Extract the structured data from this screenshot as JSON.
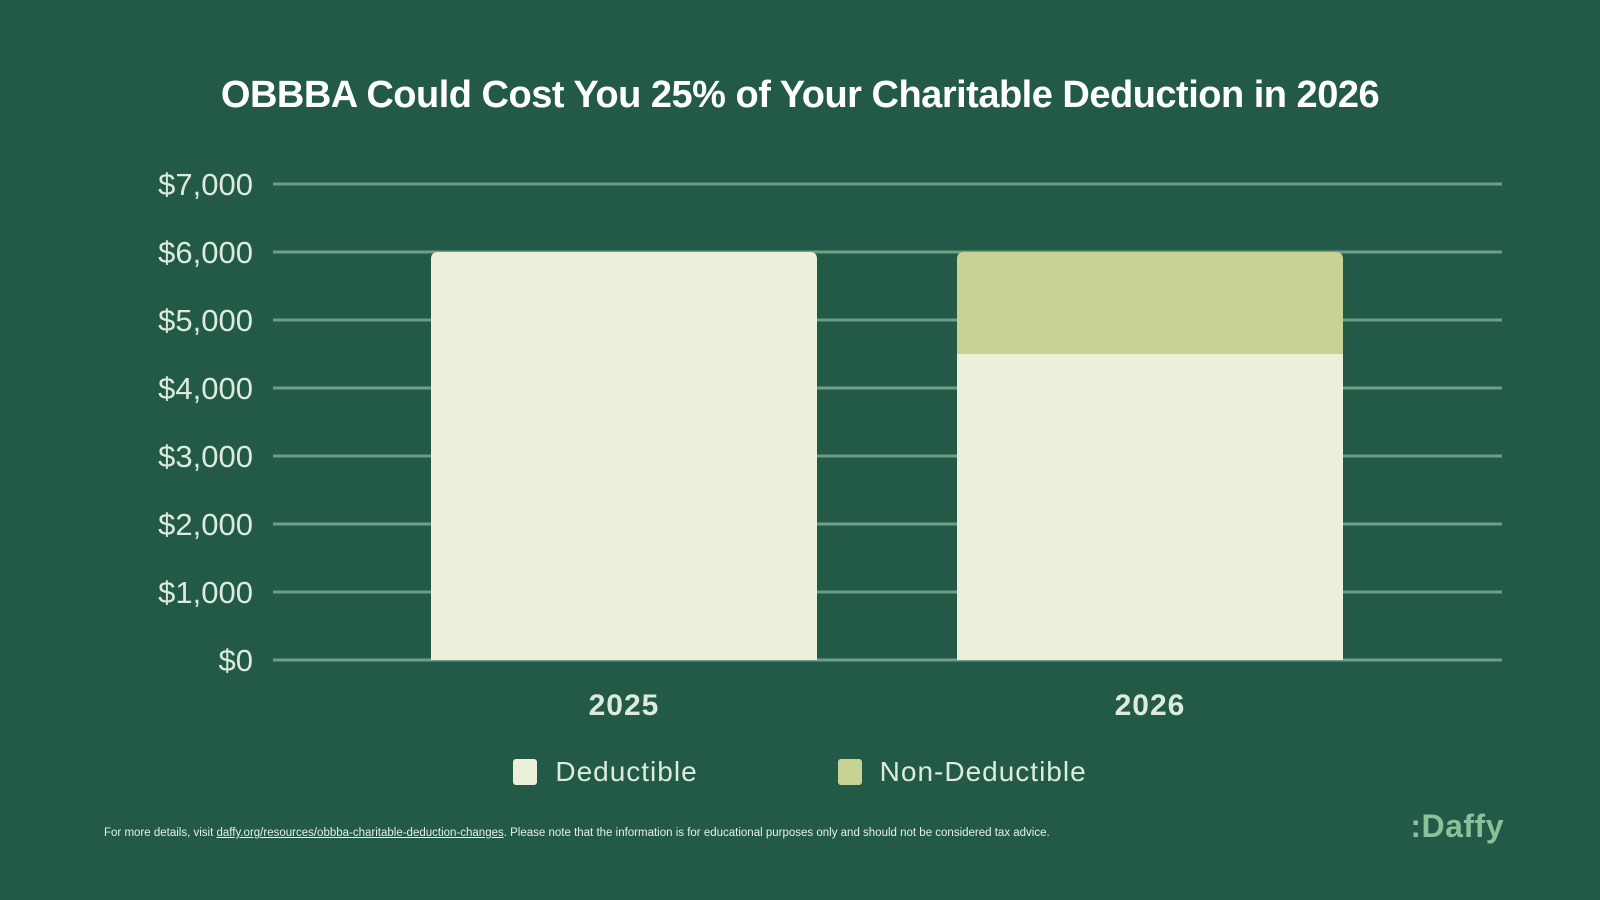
{
  "footer": {
    "prefix": "For more details, visit ",
    "link_text": "daffy.org/resources/obbba-charitable-deduction-changes",
    "suffix": ". Please note that the information is for educational purposes only and should not be considered tax advice."
  },
  "brand": {
    "logo_text": ":Daffy"
  },
  "colors": {
    "background": "#225a47",
    "deductible": "#ecf0da",
    "non_deductible": "#c8d292",
    "gridline": "#6e9f84",
    "tick_text": "#dcebdc",
    "logo": "#8cc09b"
  },
  "chart_data": {
    "type": "bar",
    "stacked": true,
    "title": "OBBBA Could Cost You 25% of Your Charitable Deduction in 2026",
    "xlabel": "",
    "ylabel": "",
    "categories": [
      "2025",
      "2026"
    ],
    "series": [
      {
        "name": "Deductible",
        "color": "#ecf0da",
        "values": [
          6000,
          4500
        ]
      },
      {
        "name": "Non-Deductible",
        "color": "#c8d292",
        "values": [
          0,
          1500
        ]
      }
    ],
    "ylim": [
      0,
      7000
    ],
    "yticks": [
      0,
      1000,
      2000,
      3000,
      4000,
      5000,
      6000,
      7000
    ],
    "ytick_labels": [
      "$0",
      "$1,000",
      "$2,000",
      "$3,000",
      "$4,000",
      "$5,000",
      "$6,000",
      "$7,000"
    ],
    "grid": true,
    "legend_position": "bottom-center"
  }
}
